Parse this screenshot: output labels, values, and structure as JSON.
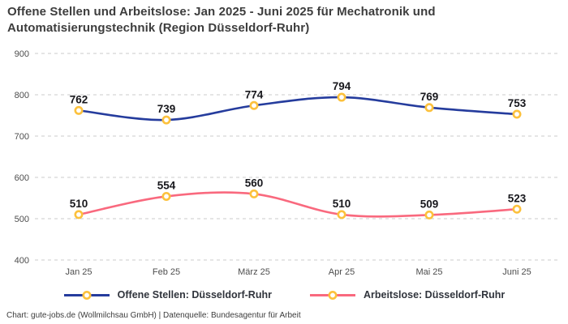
{
  "title": "Offene Stellen und Arbeitslose: Jan 2025 - Juni 2025 für Mechatronik und Automatisierungstechnik (Region Düsseldorf-Ruhr)",
  "footer": "Chart: gute-jobs.de (Wollmilchsau GmbH) | Datenquelle: Bundesagentur für Arbeit",
  "chart_data": {
    "type": "line",
    "categories": [
      "Jan 25",
      "Feb 25",
      "März 25",
      "Apr 25",
      "Mai 25",
      "Juni 25"
    ],
    "series": [
      {
        "name": "Offene Stellen: Düsseldorf-Ruhr",
        "values": [
          762,
          739,
          774,
          794,
          769,
          753
        ],
        "color": "#253c9d"
      },
      {
        "name": "Arbeitslose: Düsseldorf-Ruhr",
        "values": [
          510,
          554,
          560,
          510,
          509,
          523
        ],
        "color": "#f9697e"
      }
    ],
    "marker_color": "#fcc13d",
    "marker_fill": "#ffffff",
    "grid_color": "#cbcbcb",
    "ylim": [
      400,
      900
    ],
    "ytick_step": 100,
    "grid": "horizontal-dashed",
    "legend_position": "bottom",
    "smooth": true,
    "data_labels": true
  }
}
